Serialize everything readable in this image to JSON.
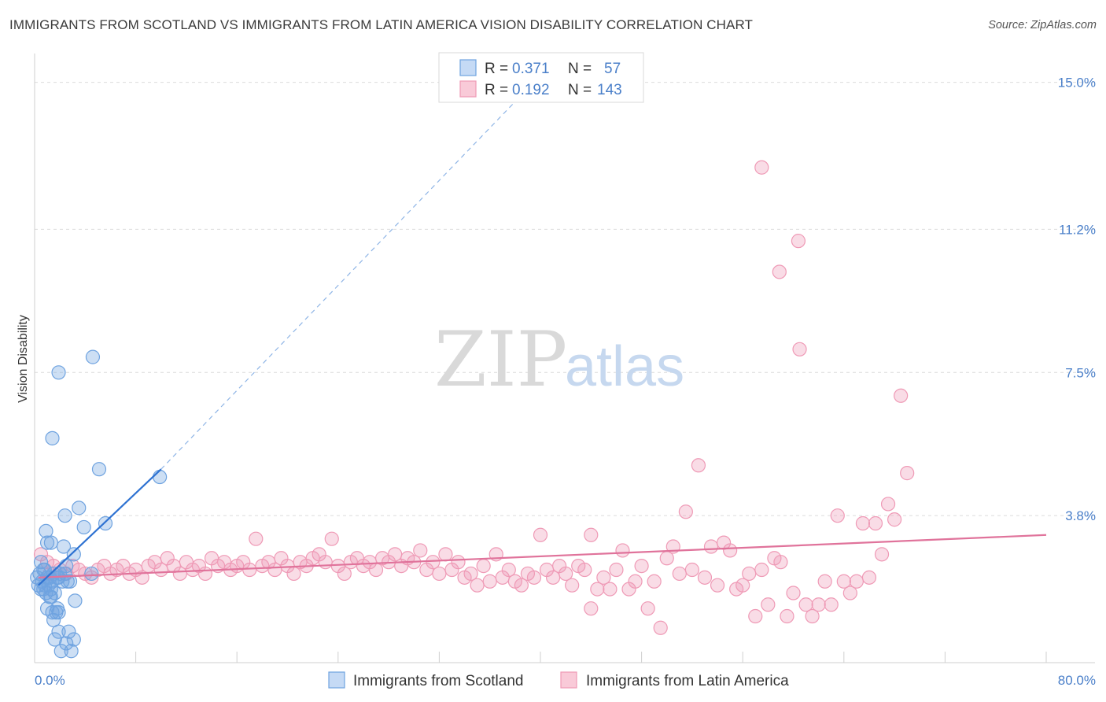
{
  "title": "IMMIGRANTS FROM SCOTLAND VS IMMIGRANTS FROM LATIN AMERICA VISION DISABILITY CORRELATION CHART",
  "source": "Source: ZipAtlas.com",
  "watermark": {
    "zip": "ZIP",
    "atlas": "atlas"
  },
  "colors": {
    "scotland": "#6fa3e0",
    "scotland_line": "#2e72d2",
    "latin": "#ef9ab6",
    "latin_line": "#e0739b",
    "tick_text": "#4a7fc9"
  },
  "legend": {
    "rows": [
      {
        "r_label": "R =",
        "r_value": "0.371",
        "n_label": "N =",
        "n_value": "57"
      },
      {
        "r_label": "R =",
        "r_value": "0.192",
        "n_label": "N =",
        "n_value": "143"
      }
    ]
  },
  "bottom_legend": [
    "Immigrants from Scotland",
    "Immigrants from Latin America"
  ],
  "chart_data": {
    "type": "scatter",
    "title": "IMMIGRANTS FROM SCOTLAND VS IMMIGRANTS FROM LATIN AMERICA VISION DISABILITY CORRELATION CHART",
    "xlabel": "",
    "ylabel": "Vision Disability",
    "xlim": [
      0,
      80
    ],
    "ylim": [
      0,
      15.5
    ],
    "x_tick_labels": [
      "0.0%",
      "80.0%"
    ],
    "y_ticks": [
      3.8,
      7.5,
      11.2,
      15.0
    ],
    "y_tick_labels": [
      "3.8%",
      "7.5%",
      "11.2%",
      "15.0%"
    ],
    "grid": "horizontal-dashed",
    "legend_position": "top-center",
    "series": [
      {
        "name": "Immigrants from Scotland",
        "r": 0.371,
        "n": 57,
        "trend": {
          "x": [
            0.3,
            10.0
          ],
          "y": [
            2.0,
            5.0
          ]
        },
        "trend_dashed_extension": {
          "x": [
            10.0,
            38.0
          ],
          "y": [
            5.0,
            14.5
          ]
        },
        "points": [
          [
            0.2,
            2.2
          ],
          [
            0.3,
            2.0
          ],
          [
            0.4,
            2.3
          ],
          [
            0.5,
            1.9
          ],
          [
            0.6,
            2.1
          ],
          [
            0.7,
            2.4
          ],
          [
            0.8,
            2.0
          ],
          [
            0.9,
            1.8
          ],
          [
            1.0,
            2.2
          ],
          [
            0.5,
            2.6
          ],
          [
            0.7,
            1.9
          ],
          [
            1.1,
            2.0
          ],
          [
            1.2,
            1.7
          ],
          [
            1.3,
            1.9
          ],
          [
            1.4,
            2.1
          ],
          [
            1.5,
            2.3
          ],
          [
            1.0,
            3.1
          ],
          [
            0.9,
            3.4
          ],
          [
            1.3,
            3.1
          ],
          [
            1.6,
            1.8
          ],
          [
            1.8,
            2.2
          ],
          [
            1.9,
            2.2
          ],
          [
            2.0,
            2.3
          ],
          [
            2.2,
            2.1
          ],
          [
            2.4,
            2.3
          ],
          [
            2.5,
            2.5
          ],
          [
            2.3,
            3.0
          ],
          [
            2.4,
            3.8
          ],
          [
            2.6,
            2.1
          ],
          [
            2.8,
            2.1
          ],
          [
            3.1,
            2.8
          ],
          [
            3.2,
            1.6
          ],
          [
            3.5,
            4.0
          ],
          [
            3.9,
            3.5
          ],
          [
            4.5,
            2.3
          ],
          [
            5.1,
            5.0
          ],
          [
            5.6,
            3.6
          ],
          [
            4.6,
            7.9
          ],
          [
            1.9,
            7.5
          ],
          [
            1.4,
            5.8
          ],
          [
            9.9,
            4.8
          ],
          [
            1.0,
            1.4
          ],
          [
            1.4,
            1.3
          ],
          [
            1.5,
            1.1
          ],
          [
            1.7,
            1.3
          ],
          [
            1.8,
            1.4
          ],
          [
            1.9,
            1.3
          ],
          [
            1.6,
            0.6
          ],
          [
            1.9,
            0.8
          ],
          [
            2.1,
            0.3
          ],
          [
            2.5,
            0.5
          ],
          [
            2.7,
            0.8
          ],
          [
            2.9,
            0.3
          ],
          [
            3.1,
            0.6
          ],
          [
            1.3,
            1.7
          ],
          [
            0.8,
            2.4
          ],
          [
            1.2,
            2.2
          ]
        ]
      },
      {
        "name": "Immigrants from Latin America",
        "r": 0.192,
        "n": 143,
        "trend": {
          "x": [
            0.3,
            80.0
          ],
          "y": [
            2.2,
            3.3
          ]
        },
        "points": [
          [
            0.5,
            2.8
          ],
          [
            1,
            2.6
          ],
          [
            1.2,
            2.3
          ],
          [
            1.5,
            2.5
          ],
          [
            2,
            2.4
          ],
          [
            2.5,
            2.3
          ],
          [
            3,
            2.5
          ],
          [
            3.5,
            2.4
          ],
          [
            4,
            2.3
          ],
          [
            4.5,
            2.2
          ],
          [
            5,
            2.4
          ],
          [
            5.5,
            2.5
          ],
          [
            6,
            2.3
          ],
          [
            6.5,
            2.4
          ],
          [
            7,
            2.5
          ],
          [
            7.5,
            2.3
          ],
          [
            8,
            2.4
          ],
          [
            8.5,
            2.2
          ],
          [
            9,
            2.5
          ],
          [
            9.5,
            2.6
          ],
          [
            10,
            2.4
          ],
          [
            10.5,
            2.7
          ],
          [
            11,
            2.5
          ],
          [
            11.5,
            2.3
          ],
          [
            12,
            2.6
          ],
          [
            12.5,
            2.4
          ],
          [
            13,
            2.5
          ],
          [
            13.5,
            2.3
          ],
          [
            14,
            2.7
          ],
          [
            14.5,
            2.5
          ],
          [
            15,
            2.6
          ],
          [
            15.5,
            2.4
          ],
          [
            16,
            2.5
          ],
          [
            16.5,
            2.6
          ],
          [
            17,
            2.4
          ],
          [
            17.5,
            3.2
          ],
          [
            18,
            2.5
          ],
          [
            18.5,
            2.6
          ],
          [
            19,
            2.4
          ],
          [
            19.5,
            2.7
          ],
          [
            20,
            2.5
          ],
          [
            20.5,
            2.3
          ],
          [
            21,
            2.6
          ],
          [
            21.5,
            2.5
          ],
          [
            22,
            2.7
          ],
          [
            22.5,
            2.8
          ],
          [
            23,
            2.6
          ],
          [
            23.5,
            3.2
          ],
          [
            24,
            2.5
          ],
          [
            24.5,
            2.3
          ],
          [
            25,
            2.6
          ],
          [
            25.5,
            2.7
          ],
          [
            26,
            2.5
          ],
          [
            26.5,
            2.6
          ],
          [
            27,
            2.4
          ],
          [
            27.5,
            2.7
          ],
          [
            28,
            2.6
          ],
          [
            28.5,
            2.8
          ],
          [
            29,
            2.5
          ],
          [
            29.5,
            2.7
          ],
          [
            30,
            2.6
          ],
          [
            30.5,
            2.9
          ],
          [
            31,
            2.4
          ],
          [
            31.5,
            2.6
          ],
          [
            32,
            2.3
          ],
          [
            32.5,
            2.8
          ],
          [
            33,
            2.4
          ],
          [
            33.5,
            2.6
          ],
          [
            34,
            2.2
          ],
          [
            34.5,
            2.3
          ],
          [
            35,
            2.0
          ],
          [
            35.5,
            2.5
          ],
          [
            36,
            2.1
          ],
          [
            36.5,
            2.8
          ],
          [
            37,
            2.2
          ],
          [
            37.5,
            2.4
          ],
          [
            38,
            2.1
          ],
          [
            38.5,
            2.0
          ],
          [
            39,
            2.3
          ],
          [
            39.5,
            2.2
          ],
          [
            40,
            3.3
          ],
          [
            40.5,
            2.4
          ],
          [
            41,
            2.2
          ],
          [
            41.5,
            2.5
          ],
          [
            42,
            2.3
          ],
          [
            42.5,
            2.0
          ],
          [
            43,
            2.5
          ],
          [
            43.5,
            2.4
          ],
          [
            44,
            1.4
          ],
          [
            44.5,
            1.9
          ],
          [
            45,
            2.2
          ],
          [
            45.5,
            1.9
          ],
          [
            46,
            2.4
          ],
          [
            46.5,
            2.9
          ],
          [
            47,
            1.9
          ],
          [
            47.5,
            2.1
          ],
          [
            48,
            2.5
          ],
          [
            48.5,
            1.4
          ],
          [
            49,
            2.1
          ],
          [
            49.5,
            0.9
          ],
          [
            50,
            2.7
          ],
          [
            50.5,
            3.0
          ],
          [
            51,
            2.3
          ],
          [
            51.5,
            3.9
          ],
          [
            52,
            2.4
          ],
          [
            52.5,
            5.1
          ],
          [
            53,
            2.2
          ],
          [
            53.5,
            3.0
          ],
          [
            54,
            2.0
          ],
          [
            54.5,
            3.1
          ],
          [
            55,
            2.9
          ],
          [
            55.5,
            1.9
          ],
          [
            56,
            2.0
          ],
          [
            56.5,
            2.3
          ],
          [
            57,
            1.2
          ],
          [
            57.5,
            2.4
          ],
          [
            58,
            1.5
          ],
          [
            58.5,
            2.7
          ],
          [
            59,
            2.6
          ],
          [
            59.5,
            1.2
          ],
          [
            60,
            1.8
          ],
          [
            60.5,
            8.1
          ],
          [
            61,
            1.5
          ],
          [
            61.5,
            1.2
          ],
          [
            62,
            1.5
          ],
          [
            62.5,
            2.1
          ],
          [
            63,
            1.5
          ],
          [
            63.5,
            3.8
          ],
          [
            64,
            2.1
          ],
          [
            64.5,
            1.8
          ],
          [
            65,
            2.1
          ],
          [
            65.5,
            3.6
          ],
          [
            66,
            2.2
          ],
          [
            66.5,
            3.6
          ],
          [
            67,
            2.8
          ],
          [
            67.5,
            4.1
          ],
          [
            68,
            3.7
          ],
          [
            68.5,
            6.9
          ],
          [
            69,
            4.9
          ],
          [
            58.9,
            10.1
          ],
          [
            60.4,
            10.9
          ],
          [
            57.5,
            12.8
          ],
          [
            44,
            3.3
          ]
        ]
      }
    ]
  }
}
